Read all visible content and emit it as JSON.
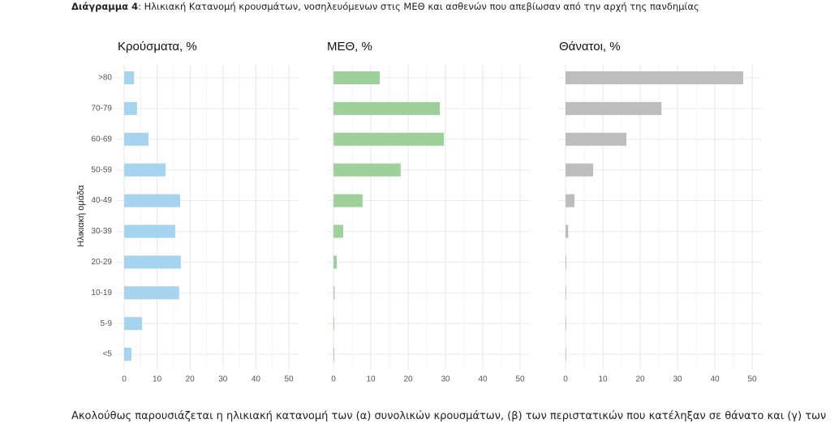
{
  "caption": {
    "label": "Διάγραμμα 4",
    "text": ": Ηλικιακή Κατανομή κρουσμάτων, νοσηλευόμενων στις ΜΕΘ και ασθενών που απεβίωσαν από την αρχή της πανδημίας"
  },
  "chart_data": {
    "type": "bar",
    "orientation": "horizontal",
    "ylabel": "Ηλικιακή ομάδα",
    "categories": [
      ">80",
      "70-79",
      "60-69",
      "50-59",
      "40-49",
      "30-39",
      "20-29",
      "10-19",
      "5-9",
      "<5"
    ],
    "xlim": [
      0,
      50
    ],
    "xticks": [
      0,
      10,
      20,
      30,
      40,
      50
    ],
    "grid": true,
    "series": [
      {
        "name": "Κρούσματα, %",
        "color": "#a6d3ee",
        "values": [
          3.0,
          3.9,
          7.4,
          12.6,
          17.0,
          15.5,
          17.2,
          16.7,
          5.4,
          2.2
        ]
      },
      {
        "name": "ΜΕΘ, %",
        "color": "#9dd09a",
        "values": [
          12.4,
          28.5,
          29.6,
          18.0,
          7.8,
          2.6,
          0.9,
          0.3,
          0.2,
          0.2
        ]
      },
      {
        "name": "Θάνατοι, %",
        "color": "#bdbdbd",
        "values": [
          47.6,
          25.7,
          16.3,
          7.4,
          2.4,
          0.7,
          0.2,
          0.1,
          0.05,
          0.1
        ]
      }
    ]
  },
  "body_text": "Ακολούθως παρουσιάζεται η ηλικιακή κατανομή των (α) συνολικών κρουσμάτων, (β) των περιστατικών που κατέληξαν σε θάνατο και (γ) των"
}
